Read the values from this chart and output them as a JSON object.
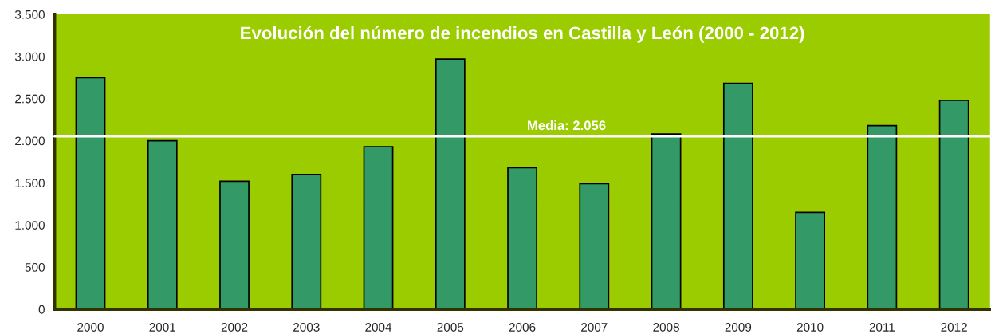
{
  "chart_data": {
    "type": "bar",
    "title": "Evolución del número de incendios en Castilla y León (2000 - 2012)",
    "categories": [
      "2000",
      "2001",
      "2002",
      "2003",
      "2004",
      "2005",
      "2006",
      "2007",
      "2008",
      "2009",
      "2010",
      "2011",
      "2012"
    ],
    "values": [
      2750,
      2000,
      1520,
      1600,
      1930,
      2970,
      1680,
      1490,
      2080,
      2680,
      1150,
      2180,
      2480
    ],
    "color": "#339966",
    "ylim": [
      0,
      3500
    ],
    "yticks": [
      {
        "value": 0,
        "label": "0"
      },
      {
        "value": 500,
        "label": "500"
      },
      {
        "value": 1000,
        "label": "1.000"
      },
      {
        "value": 1500,
        "label": "1.500"
      },
      {
        "value": 2000,
        "label": "2.000"
      },
      {
        "value": 2500,
        "label": "2.500"
      },
      {
        "value": 3000,
        "label": "3.000"
      },
      {
        "value": 3500,
        "label": "3.500"
      }
    ],
    "ref_lines": [
      {
        "axis": "y",
        "value": 2056,
        "label": "Media: 2.056",
        "color": "#ffffff",
        "line_style": "solid"
      }
    ],
    "grid": false,
    "legend": false
  }
}
